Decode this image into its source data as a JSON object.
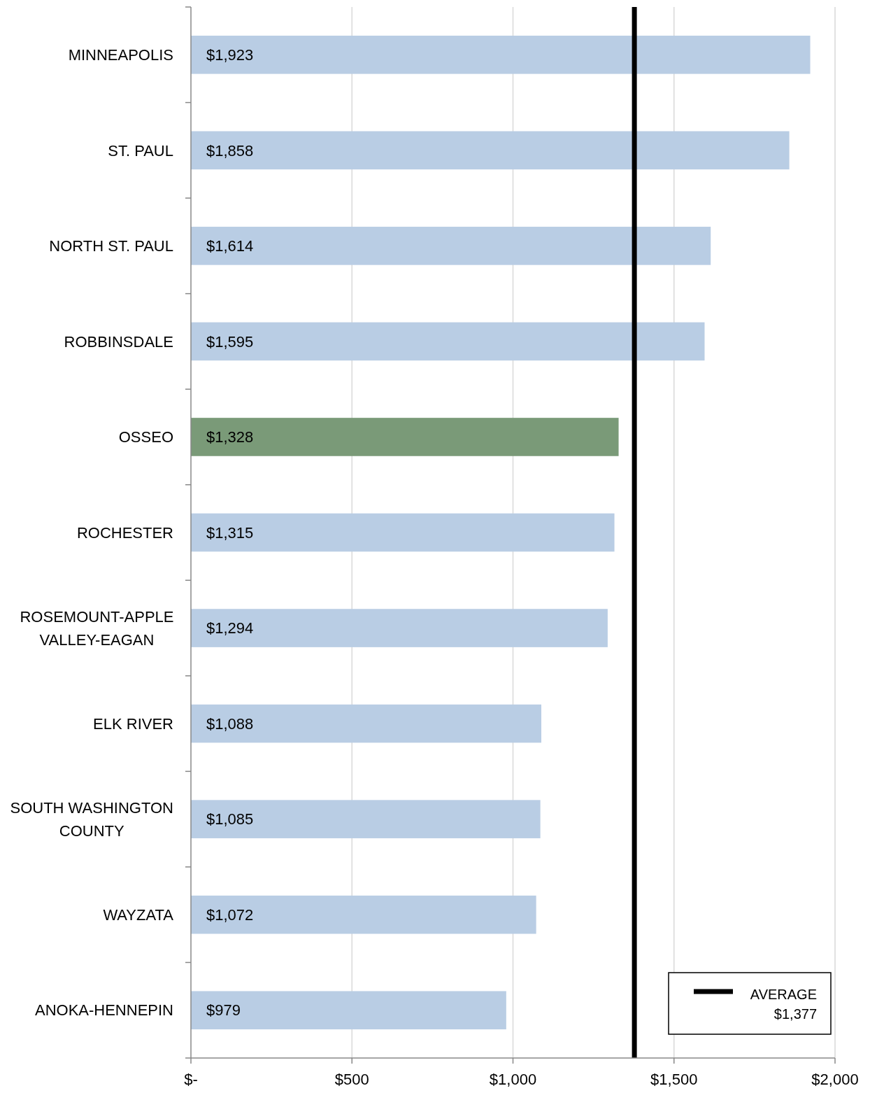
{
  "chart_data": {
    "type": "bar",
    "orientation": "horizontal",
    "categories": [
      "MINNEAPOLIS",
      "ST. PAUL",
      "NORTH ST. PAUL",
      "ROBBINSDALE",
      "OSSEO",
      "ROCHESTER",
      "ROSEMOUNT-APPLE VALLEY-EAGAN",
      "ELK RIVER",
      "SOUTH WASHINGTON COUNTY",
      "WAYZATA",
      "ANOKA-HENNEPIN"
    ],
    "values": [
      1923,
      1858,
      1614,
      1595,
      1328,
      1315,
      1294,
      1088,
      1085,
      1072,
      979
    ],
    "colors": [
      "#b9cde4",
      "#b9cde4",
      "#b9cde4",
      "#b9cde4",
      "#7a9a78",
      "#b9cde4",
      "#b9cde4",
      "#b9cde4",
      "#b9cde4",
      "#b9cde4",
      "#b9cde4"
    ],
    "value_labels": [
      "$1,923",
      "$1,858",
      "$1,614",
      "$1,595",
      "$1,328",
      "$1,315",
      "$1,294",
      "$1,088",
      "$1,085",
      "$1,072",
      "$979"
    ],
    "xlim": [
      0,
      2000
    ],
    "xticks": [
      {
        "value": 0,
        "label": "$-"
      },
      {
        "value": 500,
        "label": "$500"
      },
      {
        "value": 1000,
        "label": "$1,000"
      },
      {
        "value": 1500,
        "label": "$1,500"
      },
      {
        "value": 2000,
        "label": "$2,000"
      }
    ],
    "grid": "x",
    "ref_lines": [
      {
        "axis": "x",
        "value": 1377,
        "label": "AVERAGE\n$1,377",
        "color": "#000000",
        "line_style": "solid"
      }
    ],
    "legend": "bottom right"
  }
}
